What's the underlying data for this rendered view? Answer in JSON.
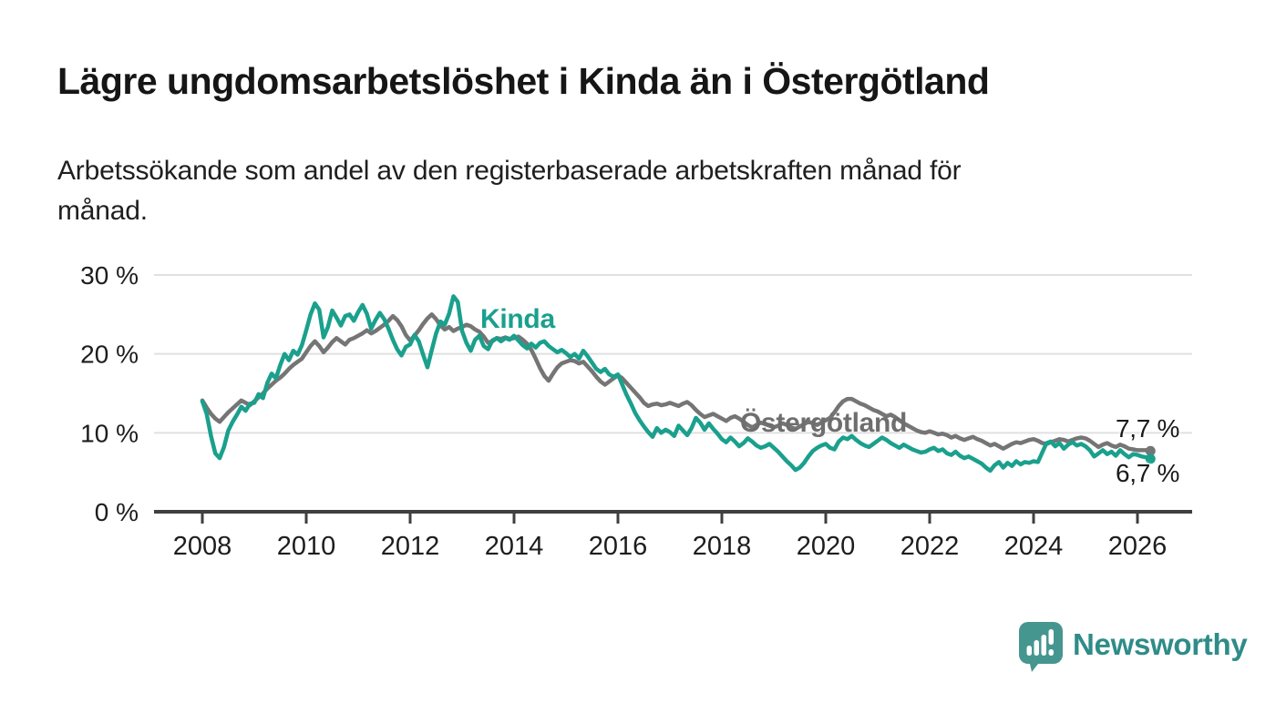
{
  "header": {
    "title": "Lägre ungdomsarbetslöshet i Kinda än i Östergötland",
    "subtitle_line1": "Arbetssökande som andel av den registerbaserade arbetskraften månad för",
    "subtitle_line2": "månad."
  },
  "chart_data": {
    "type": "line",
    "title": "Lägre ungdomsarbetslöshet i Kinda än i Östergötland",
    "subtitle": "Arbetssökande som andel av den registerbaserade arbetskraften månad för månad.",
    "unit": "%",
    "frequency": "monthly",
    "x_start": "2008-01",
    "x_end": "2026-04",
    "ylim": [
      0,
      30
    ],
    "grid": "horizontal",
    "y_ticks": [
      "30 %",
      "20 %",
      "10 %",
      "0 %"
    ],
    "y_tick_values": [
      30,
      20,
      10,
      0
    ],
    "x_tick_years": [
      2008,
      2010,
      2012,
      2014,
      2016,
      2018,
      2020,
      2022,
      2024,
      2026
    ],
    "colors": {
      "grid": "#e0e0e0",
      "axis": "#3f3f3f",
      "tick_text": "#1d1d1d",
      "value_text": "#1a1a1a"
    },
    "series": [
      {
        "name": "Kinda",
        "color": "#1aa08d",
        "end_label": "6,7 %",
        "end_value": 6.7,
        "values": [
          14.0,
          12.4,
          9.6,
          7.4,
          6.8,
          8.2,
          10.3,
          11.4,
          12.3,
          13.3,
          12.8,
          13.7,
          13.8,
          14.9,
          14.4,
          16.3,
          17.5,
          16.9,
          18.6,
          20.0,
          19.2,
          20.4,
          19.9,
          21.1,
          23.0,
          25.0,
          26.4,
          25.6,
          22.1,
          23.4,
          25.5,
          24.6,
          23.6,
          24.8,
          25.0,
          24.2,
          25.3,
          26.2,
          25.1,
          23.2,
          24.3,
          25.2,
          24.4,
          23.2,
          21.8,
          20.6,
          19.8,
          20.9,
          21.2,
          22.4,
          21.6,
          19.9,
          18.3,
          20.5,
          22.6,
          24.1,
          23.7,
          25.1,
          27.3,
          26.6,
          22.9,
          21.4,
          20.4,
          21.8,
          22.3,
          21.0,
          20.6,
          21.7,
          22.0,
          21.6,
          22.0,
          21.8,
          22.3,
          21.7,
          21.1,
          20.7,
          21.3,
          20.8,
          21.4,
          21.6,
          21.0,
          20.6,
          20.2,
          20.5,
          20.1,
          19.6,
          20.0,
          19.4,
          20.4,
          19.7,
          18.9,
          18.1,
          17.7,
          18.1,
          17.4,
          17.1,
          17.4,
          16.1,
          14.8,
          13.7,
          12.5,
          11.6,
          10.8,
          10.1,
          9.5,
          10.6,
          10.0,
          10.4,
          10.1,
          9.6,
          10.9,
          10.3,
          9.7,
          10.6,
          11.9,
          11.3,
          10.4,
          11.2,
          10.5,
          9.9,
          9.2,
          8.8,
          9.4,
          8.9,
          8.3,
          8.7,
          9.3,
          8.9,
          8.4,
          8.1,
          8.3,
          8.6,
          8.1,
          7.6,
          7.0,
          6.4,
          5.9,
          5.3,
          5.6,
          6.2,
          7.0,
          7.7,
          8.1,
          8.4,
          8.6,
          8.1,
          7.9,
          8.9,
          9.4,
          9.2,
          9.6,
          9.1,
          8.7,
          8.4,
          8.2,
          8.6,
          9.0,
          9.4,
          9.1,
          8.7,
          8.4,
          8.1,
          8.5,
          8.2,
          7.9,
          7.7,
          7.5,
          7.6,
          7.9,
          8.1,
          7.7,
          7.9,
          7.4,
          7.2,
          7.6,
          7.1,
          6.8,
          7.0,
          6.7,
          6.4,
          6.1,
          5.6,
          5.2,
          5.9,
          6.3,
          5.6,
          6.2,
          5.8,
          6.4,
          6.0,
          6.3,
          6.2,
          6.4,
          6.3,
          7.5,
          8.7,
          8.9,
          8.3,
          8.7,
          8.0,
          8.5,
          8.8,
          8.4,
          8.6,
          8.3,
          7.8,
          7.0,
          7.4,
          7.8,
          7.3,
          7.6,
          7.1,
          7.8,
          7.3,
          6.9,
          7.3,
          7.2,
          7.0,
          6.9,
          6.7
        ]
      },
      {
        "name": "Östergötland",
        "color": "#757575",
        "label_color": "#6e6e6e",
        "end_label": "7,7 %",
        "end_value": 7.7,
        "values": [
          14.1,
          13.2,
          12.4,
          11.8,
          11.4,
          12.0,
          12.6,
          13.1,
          13.6,
          14.1,
          13.8,
          13.5,
          14.0,
          14.5,
          15.0,
          15.6,
          16.1,
          16.6,
          17.0,
          17.5,
          18.1,
          18.6,
          19.0,
          19.4,
          20.2,
          21.0,
          21.6,
          21.0,
          20.2,
          20.8,
          21.5,
          22.0,
          21.6,
          21.2,
          21.8,
          22.0,
          22.3,
          22.6,
          23.0,
          22.6,
          22.9,
          23.3,
          23.7,
          24.2,
          24.8,
          24.3,
          23.5,
          22.4,
          21.7,
          22.3,
          23.0,
          23.8,
          24.5,
          25.0,
          24.4,
          23.6,
          23.1,
          23.4,
          22.9,
          23.2,
          23.4,
          23.7,
          23.5,
          23.1,
          22.8,
          22.2,
          21.4,
          21.6,
          22.0,
          21.9,
          22.1,
          21.9,
          22.0,
          22.2,
          21.8,
          21.3,
          20.5,
          19.4,
          18.2,
          17.2,
          16.6,
          17.5,
          18.3,
          18.8,
          19.0,
          19.2,
          19.1,
          18.8,
          19.0,
          18.4,
          17.8,
          17.1,
          16.5,
          16.1,
          16.5,
          16.9,
          17.3,
          16.9,
          16.3,
          15.7,
          15.1,
          14.5,
          13.8,
          13.4,
          13.6,
          13.7,
          13.5,
          13.6,
          13.8,
          13.6,
          13.4,
          13.7,
          13.9,
          13.5,
          12.9,
          12.4,
          12.0,
          12.2,
          12.4,
          12.1,
          11.8,
          11.5,
          11.9,
          12.1,
          11.8,
          11.4,
          11.0,
          10.7,
          11.0,
          11.3,
          11.1,
          10.9,
          10.7,
          10.9,
          11.2,
          11.0,
          10.7,
          10.5,
          10.8,
          11.1,
          11.4,
          11.2,
          11.0,
          11.3,
          11.6,
          11.9,
          12.6,
          13.4,
          14.0,
          14.3,
          14.3,
          14.0,
          13.7,
          13.5,
          13.2,
          12.9,
          12.7,
          12.4,
          12.1,
          12.3,
          12.0,
          11.6,
          11.2,
          10.9,
          10.6,
          10.3,
          10.1,
          10.0,
          10.2,
          10.0,
          9.8,
          9.9,
          9.7,
          9.4,
          9.6,
          9.3,
          9.1,
          9.3,
          9.5,
          9.2,
          9.0,
          8.7,
          8.4,
          8.6,
          8.3,
          8.0,
          8.3,
          8.6,
          8.8,
          8.7,
          8.9,
          9.1,
          9.2,
          9.0,
          8.7,
          8.6,
          8.8,
          9.0,
          9.2,
          9.1,
          8.9,
          9.1,
          9.3,
          9.4,
          9.3,
          9.0,
          8.6,
          8.2,
          8.5,
          8.7,
          8.4,
          8.2,
          8.5,
          8.3,
          8.0,
          7.9,
          7.8,
          7.8,
          7.8,
          7.7
        ]
      }
    ]
  },
  "footer": {
    "brand": "Newsworthy",
    "logo": "newsworthy-speech-bubble-bar-chart-icon",
    "brand_color": "#2f8c88",
    "logo_color": "#469690"
  }
}
